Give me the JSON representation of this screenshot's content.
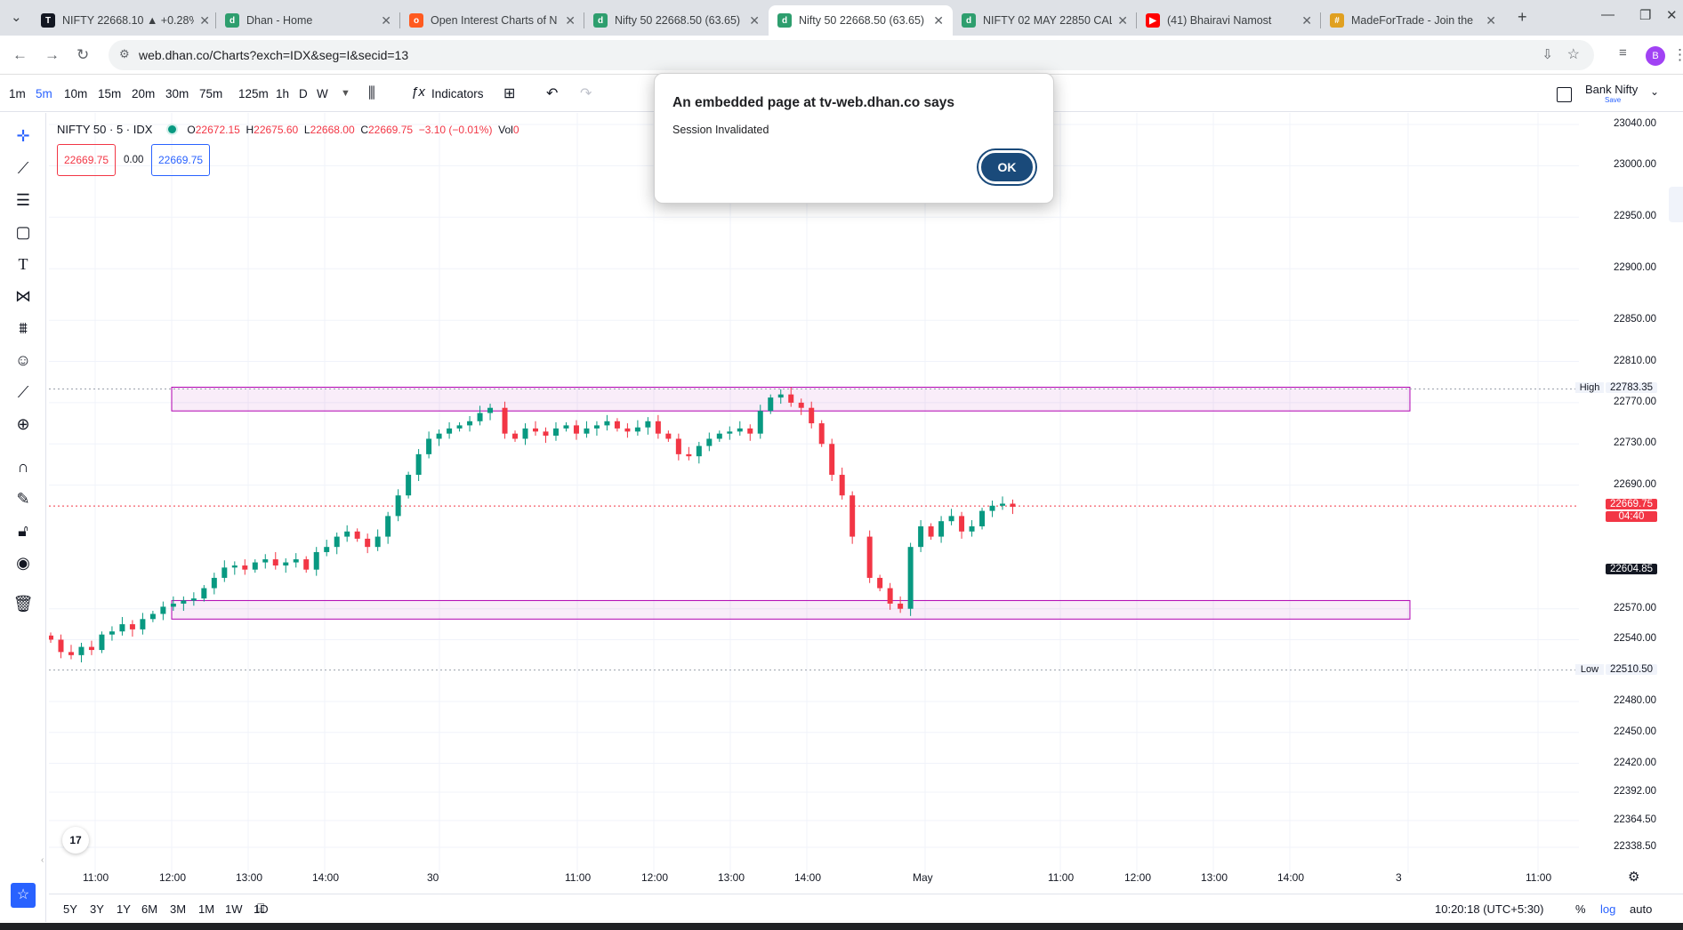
{
  "browser": {
    "tabs": [
      {
        "title": "NIFTY 22668.10 ▲ +0.28%",
        "favicon_color": "#131722",
        "favicon_char": "T",
        "active": false
      },
      {
        "title": "Dhan - Home",
        "favicon_color": "#2e9e6e",
        "favicon_char": "d",
        "active": false
      },
      {
        "title": "Open Interest Charts of N",
        "favicon_color": "#ff5a1f",
        "favicon_char": "o",
        "active": false
      },
      {
        "title": "Nifty 50 22668.50 (63.65)",
        "favicon_color": "#2e9e6e",
        "favicon_char": "d",
        "active": false
      },
      {
        "title": "Nifty 50 22668.50 (63.65)",
        "favicon_color": "#2e9e6e",
        "favicon_char": "d",
        "active": true
      },
      {
        "title": "NIFTY 02 MAY 22850 CAL",
        "favicon_color": "#2e9e6e",
        "favicon_char": "d",
        "active": false
      },
      {
        "title": "(41) Bhairavi Namost",
        "favicon_color": "#ff0000",
        "favicon_char": "▶",
        "active": false
      },
      {
        "title": "MadeForTrade - Join the",
        "favicon_color": "#e0a020",
        "favicon_char": "#",
        "active": false
      }
    ],
    "url": "web.dhan.co/Charts?exch=IDX&seg=I&secid=13",
    "profile_initial": "B"
  },
  "toolbar": {
    "timeframes": [
      "1m",
      "5m",
      "10m",
      "15m",
      "20m",
      "30m",
      "75m",
      "125m",
      "1h",
      "D",
      "W"
    ],
    "active_timeframe": "5m",
    "indicators_label": "Indicators",
    "symbol_switch_label": "Bank Nifty",
    "save_label": "Save"
  },
  "legend": {
    "symbol": "NIFTY 50 · 5 · IDX",
    "o_label": "O",
    "o_value": "22672.15",
    "h_label": "H",
    "h_value": "22675.60",
    "l_label": "L",
    "l_value": "22668.00",
    "c_label": "C",
    "c_value": "22669.75",
    "change": "−3.10 (−0.01%)",
    "vol_label": "Vol",
    "vol_value": "0",
    "sell_price": "22669.75",
    "spread": "0.00",
    "buy_price": "22669.75"
  },
  "price_axis": {
    "labels": [
      "23040.00",
      "23000.00",
      "22950.00",
      "22900.00",
      "22850.00",
      "22810.00",
      "22770.00",
      "22730.00",
      "22690.00",
      "22570.00",
      "22540.00",
      "22480.00",
      "22450.00",
      "22420.00",
      "22392.00",
      "22364.50",
      "22338.50"
    ],
    "high_tag": "High",
    "high_value": "22783.35",
    "low_tag": "Low",
    "low_value": "22510.50",
    "last_price": "22669.75",
    "countdown": "04:40",
    "crosshair_price": "22604.85"
  },
  "time_axis": {
    "labels": [
      "11:00",
      "12:00",
      "13:00",
      "14:00",
      "30",
      "11:00",
      "12:00",
      "13:00",
      "14:00",
      "May",
      "11:00",
      "12:00",
      "13:00",
      "14:00",
      "3",
      "11:00"
    ]
  },
  "bottom_bar": {
    "ranges": [
      "5Y",
      "3Y",
      "1Y",
      "6M",
      "3M",
      "1M",
      "1W",
      "1D"
    ],
    "clock": "10:20:18 (UTC+5:30)",
    "percent_label": "%",
    "log_label": "log",
    "auto_label": "auto"
  },
  "dialog": {
    "title": "An embedded page at tv-web.dhan.co says",
    "message": "Session Invalidated",
    "ok_label": "OK"
  },
  "colors": {
    "up": "#089981",
    "down": "#f23645",
    "zone": "#b000b0",
    "accent": "#2962ff"
  },
  "chart_data": {
    "type": "candlestick",
    "symbol": "NIFTY 50",
    "interval": "5",
    "ylim": [
      22320,
      23050
    ],
    "high": 22783.35,
    "low": 22510.5,
    "last": 22669.75,
    "zones": [
      {
        "from": 22762,
        "to": 22785
      },
      {
        "from": 22560,
        "to": 22578
      }
    ],
    "close_path": [
      22540,
      22528,
      22525,
      22533,
      22530,
      22545,
      22548,
      22555,
      22550,
      22560,
      22565,
      22572,
      22575,
      22578,
      22580,
      22590,
      22600,
      22610,
      22612,
      22608,
      22615,
      22618,
      22612,
      22615,
      22618,
      22608,
      22625,
      22630,
      22640,
      22645,
      22638,
      22630,
      22640,
      22660,
      22680,
      22700,
      22720,
      22735,
      22740,
      22745,
      22748,
      22752,
      22760,
      22765,
      22740,
      22735,
      22745,
      22742,
      22738,
      22745,
      22748,
      22740,
      22745,
      22748,
      22752,
      22745,
      22742,
      22746,
      22752,
      22740,
      22735,
      22720,
      22718,
      22728,
      22735,
      22740,
      22742,
      22745,
      22740,
      22762,
      22775,
      22778,
      22770,
      22765,
      22750,
      22730,
      22700,
      22680,
      22640,
      22600,
      22590,
      22575,
      22570,
      22630,
      22650,
      22640,
      22655,
      22660,
      22645,
      22650,
      22665,
      22670,
      22672,
      22669
    ]
  }
}
